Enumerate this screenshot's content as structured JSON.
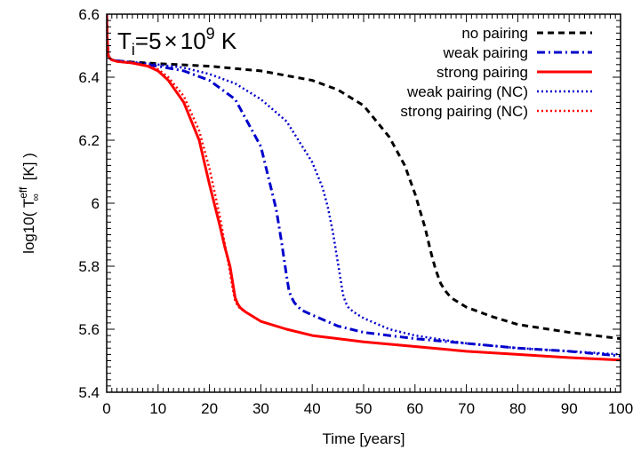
{
  "chart_data": {
    "type": "line",
    "title": "",
    "xlabel": "Time [years]",
    "ylabel": {
      "prefix": "log10( T",
      "sup": "eff",
      "sub": "∞",
      "suffix": " [K] )"
    },
    "annotation": {
      "base": "T",
      "sub": "i",
      "eq": "=5",
      "times": "×",
      "ten": "10",
      "exp": "9",
      "unit": " K"
    },
    "xlim": [
      0,
      100
    ],
    "ylim": [
      5.4,
      6.6
    ],
    "xticks": [
      0,
      10,
      20,
      30,
      40,
      50,
      60,
      70,
      80,
      90,
      100
    ],
    "xtick_labels": [
      "0",
      "10",
      "20",
      "30",
      "40",
      "50",
      "60",
      "70",
      "80",
      "90",
      "100"
    ],
    "yticks": [
      5.4,
      5.6,
      5.8,
      6.0,
      6.2,
      6.4,
      6.6
    ],
    "ytick_labels": [
      "5.4",
      "5.6",
      "5.8",
      "6",
      "6.2",
      "6.4",
      "6.6"
    ],
    "grid": false,
    "legend_position": "top-right",
    "series": [
      {
        "name": "no pairing",
        "color": "#000000",
        "dash": "dashed",
        "x": [
          0,
          0.1,
          0.3,
          0.6,
          1,
          2,
          5,
          10,
          20,
          30,
          40,
          45,
          50,
          55,
          58,
          60,
          62,
          63,
          64,
          65,
          66,
          67,
          70,
          75,
          80,
          90,
          100
        ],
        "y": [
          6.6,
          6.52,
          6.47,
          6.46,
          6.455,
          6.452,
          6.448,
          6.443,
          6.435,
          6.42,
          6.39,
          6.36,
          6.31,
          6.21,
          6.12,
          6.03,
          5.92,
          5.85,
          5.79,
          5.745,
          5.72,
          5.7,
          5.67,
          5.64,
          5.615,
          5.59,
          5.57
        ]
      },
      {
        "name": "weak pairing",
        "color": "#0000cc",
        "dash": "dashdot",
        "x": [
          0,
          0.1,
          0.3,
          0.6,
          1,
          2,
          5,
          10,
          15,
          20,
          25,
          30,
          33,
          34,
          35,
          35.5,
          36,
          36.5,
          37,
          38,
          40,
          45,
          50,
          60,
          70,
          80,
          90,
          100
        ],
        "y": [
          6.6,
          6.52,
          6.47,
          6.46,
          6.455,
          6.452,
          6.445,
          6.435,
          6.42,
          6.39,
          6.33,
          6.18,
          5.98,
          5.88,
          5.77,
          5.72,
          5.7,
          5.685,
          5.675,
          5.66,
          5.645,
          5.61,
          5.59,
          5.57,
          5.555,
          5.54,
          5.53,
          5.515
        ]
      },
      {
        "name": "strong pairing",
        "color": "#ff0000",
        "dash": "solid",
        "x": [
          0,
          0.1,
          0.3,
          0.6,
          1,
          2,
          5,
          8,
          10,
          12,
          15,
          18,
          20,
          22,
          23,
          24,
          24.5,
          25,
          25.5,
          26,
          27,
          28,
          30,
          35,
          40,
          50,
          60,
          70,
          80,
          90,
          100
        ],
        "y": [
          6.6,
          6.52,
          6.47,
          6.46,
          6.455,
          6.45,
          6.445,
          6.435,
          6.42,
          6.39,
          6.32,
          6.2,
          6.06,
          5.93,
          5.86,
          5.8,
          5.75,
          5.7,
          5.68,
          5.668,
          5.655,
          5.645,
          5.625,
          5.6,
          5.58,
          5.56,
          5.545,
          5.53,
          5.52,
          5.51,
          5.502
        ]
      },
      {
        "name": "weak pairing (NC)",
        "color": "#0000cc",
        "dash": "dotted",
        "x": [
          0,
          0.1,
          0.3,
          0.6,
          1,
          2,
          5,
          10,
          15,
          20,
          25,
          30,
          35,
          40,
          42,
          43,
          44,
          45,
          45.5,
          46,
          46.5,
          47,
          48,
          50,
          55,
          60,
          70,
          80,
          90,
          100
        ],
        "y": [
          6.6,
          6.52,
          6.47,
          6.46,
          6.455,
          6.452,
          6.448,
          6.44,
          6.43,
          6.41,
          6.38,
          6.33,
          6.26,
          6.13,
          6.05,
          5.99,
          5.91,
          5.81,
          5.76,
          5.71,
          5.685,
          5.67,
          5.655,
          5.635,
          5.6,
          5.58,
          5.555,
          5.54,
          5.53,
          5.52
        ]
      },
      {
        "name": "strong pairing (NC)",
        "color": "#ff0000",
        "dash": "dotted",
        "x": [
          0,
          0.1,
          0.3,
          0.6,
          1,
          2,
          5,
          8,
          10,
          12,
          15,
          18,
          20,
          22,
          23,
          24,
          24.5,
          25,
          25.5,
          26,
          27,
          28,
          30,
          35,
          40,
          50,
          60,
          70,
          80,
          90,
          100
        ],
        "y": [
          6.6,
          6.52,
          6.47,
          6.46,
          6.455,
          6.45,
          6.445,
          6.437,
          6.425,
          6.4,
          6.34,
          6.23,
          6.11,
          5.96,
          5.87,
          5.78,
          5.73,
          5.69,
          5.675,
          5.665,
          5.655,
          5.645,
          5.625,
          5.6,
          5.58,
          5.56,
          5.545,
          5.53,
          5.52,
          5.51,
          5.502
        ]
      }
    ]
  }
}
